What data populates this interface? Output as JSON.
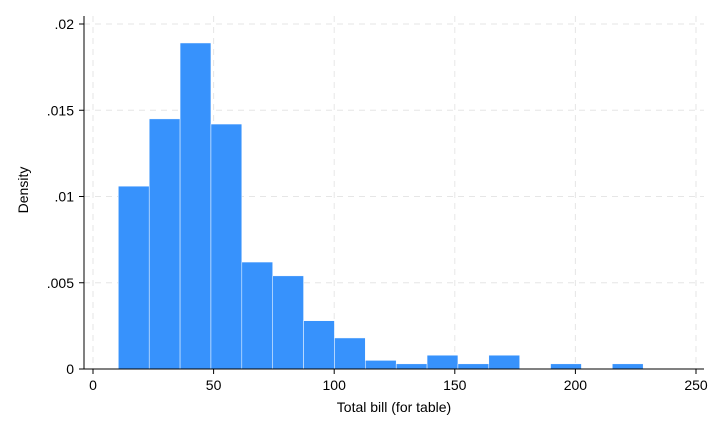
{
  "chart_data": {
    "type": "bar",
    "subtype": "histogram",
    "title": "",
    "xlabel": "Total bill (for table)",
    "ylabel": "Density",
    "xlim": [
      0,
      250
    ],
    "ylim": [
      0,
      0.02
    ],
    "x_ticks": [
      0,
      50,
      100,
      150,
      200,
      250
    ],
    "x_tick_labels": [
      "0",
      "50",
      "100",
      "150",
      "200",
      "250"
    ],
    "y_ticks": [
      0,
      0.005,
      0.01,
      0.015,
      0.02
    ],
    "y_tick_labels": [
      "0",
      ".005",
      ".01",
      ".015",
      ".02"
    ],
    "grid": true,
    "bar_color": "#3792fc",
    "bins": [
      {
        "x0": 10.5,
        "x1": 23.3,
        "density": 0.0106
      },
      {
        "x0": 23.3,
        "x1": 36.1,
        "density": 0.0145
      },
      {
        "x0": 36.1,
        "x1": 48.9,
        "density": 0.0189
      },
      {
        "x0": 48.9,
        "x1": 61.7,
        "density": 0.0142
      },
      {
        "x0": 61.7,
        "x1": 74.5,
        "density": 0.0062
      },
      {
        "x0": 74.5,
        "x1": 87.3,
        "density": 0.0054
      },
      {
        "x0": 87.3,
        "x1": 100.1,
        "density": 0.0028
      },
      {
        "x0": 100.1,
        "x1": 112.9,
        "density": 0.0018
      },
      {
        "x0": 112.9,
        "x1": 125.7,
        "density": 0.0005
      },
      {
        "x0": 125.7,
        "x1": 138.5,
        "density": 0.0003
      },
      {
        "x0": 138.5,
        "x1": 151.3,
        "density": 0.0008
      },
      {
        "x0": 151.3,
        "x1": 164.1,
        "density": 0.0003
      },
      {
        "x0": 164.1,
        "x1": 176.9,
        "density": 0.0008
      },
      {
        "x0": 176.9,
        "x1": 189.7,
        "density": 0
      },
      {
        "x0": 189.7,
        "x1": 202.5,
        "density": 0.0003
      },
      {
        "x0": 202.5,
        "x1": 215.3,
        "density": 0
      },
      {
        "x0": 215.3,
        "x1": 228.1,
        "density": 0.0003
      }
    ]
  }
}
